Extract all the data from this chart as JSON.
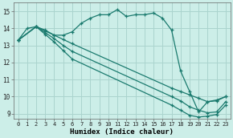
{
  "bg_color": "#cceee8",
  "line_color": "#1a7a6e",
  "grid_color": "#aad4ce",
  "xlabel": "Humidex (Indice chaleur)",
  "xlim": [
    -0.5,
    23.5
  ],
  "ylim": [
    8.7,
    15.5
  ],
  "yticks": [
    9,
    10,
    11,
    12,
    13,
    14,
    15
  ],
  "xticks": [
    0,
    1,
    2,
    3,
    4,
    5,
    6,
    7,
    8,
    9,
    10,
    11,
    12,
    13,
    14,
    15,
    16,
    17,
    18,
    19,
    20,
    21,
    22,
    23
  ],
  "curve1_x": [
    0,
    1,
    2,
    3,
    4,
    5,
    6,
    7,
    8,
    9,
    10,
    11,
    12,
    13,
    14,
    15,
    16,
    17,
    18,
    19,
    20,
    21,
    22,
    23
  ],
  "curve1_y": [
    13.3,
    14.0,
    14.1,
    13.9,
    13.6,
    13.6,
    13.8,
    14.3,
    14.6,
    14.8,
    14.8,
    15.1,
    14.7,
    14.8,
    14.8,
    14.9,
    14.6,
    13.9,
    11.5,
    10.3,
    9.1,
    9.7,
    9.8,
    10.0
  ],
  "curve2_x": [
    0,
    2,
    3,
    4,
    5,
    6,
    17,
    18,
    19,
    20,
    21,
    22,
    23
  ],
  "curve2_y": [
    13.3,
    14.1,
    13.85,
    13.6,
    13.35,
    13.1,
    10.5,
    10.3,
    10.1,
    9.9,
    9.7,
    9.75,
    10.0
  ],
  "curve3_x": [
    0,
    2,
    3,
    4,
    5,
    6,
    17,
    18,
    19,
    20,
    21,
    22,
    23
  ],
  "curve3_y": [
    13.3,
    14.1,
    13.75,
    13.4,
    13.0,
    12.65,
    10.0,
    9.75,
    9.4,
    9.2,
    9.05,
    9.1,
    9.7
  ],
  "curve4_x": [
    0,
    2,
    3,
    4,
    5,
    6,
    17,
    18,
    19,
    20,
    21,
    22,
    23
  ],
  "curve4_y": [
    13.3,
    14.1,
    13.65,
    13.2,
    12.7,
    12.2,
    9.5,
    9.2,
    8.9,
    8.8,
    8.85,
    8.95,
    9.5
  ]
}
